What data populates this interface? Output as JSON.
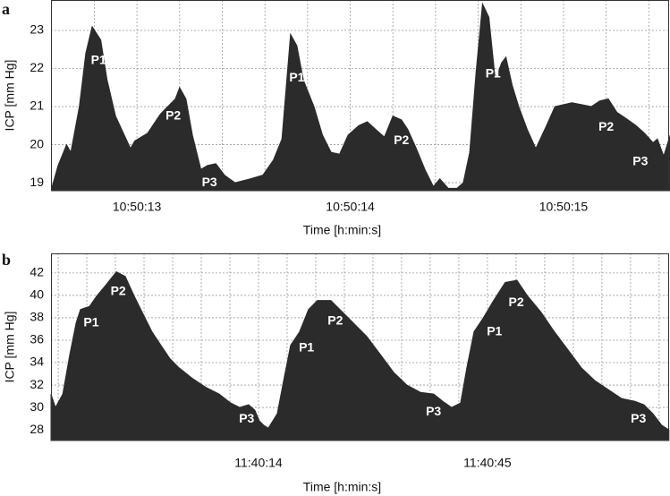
{
  "chart_data": [
    {
      "type": "area",
      "panel": "a",
      "ylabel": "ICP [mm Hg]",
      "xlabel": "Time [h:min:s]",
      "color": "#2b2b2b",
      "grid": true,
      "xlim": [
        12.597,
        15.495
      ],
      "ylim": [
        18.79,
        23.8
      ],
      "xticks": [
        {
          "value": 13,
          "label": "10:50:13"
        },
        {
          "value": 14,
          "label": "10:50:14"
        },
        {
          "value": 15,
          "label": "10:50:15"
        }
      ],
      "x_minor_ticks": [
        12.8,
        13.2,
        13.4,
        13.6,
        13.8,
        14.2,
        14.4,
        14.6,
        14.8,
        15.2,
        15.4
      ],
      "yticks": [
        19,
        20,
        21,
        22,
        23
      ],
      "x": [
        12.6,
        12.63,
        12.67,
        12.69,
        12.73,
        12.76,
        12.79,
        12.83,
        12.86,
        12.9,
        12.97,
        12.99,
        13.05,
        13.11,
        13.18,
        13.2,
        13.23,
        13.26,
        13.3,
        13.33,
        13.37,
        13.41,
        13.46,
        13.53,
        13.59,
        13.64,
        13.68,
        13.72,
        13.75,
        13.78,
        13.83,
        13.87,
        13.91,
        13.95,
        13.99,
        14.04,
        14.08,
        14.12,
        14.16,
        14.2,
        14.24,
        14.27,
        14.31,
        14.35,
        14.39,
        14.42,
        14.46,
        14.5,
        14.53,
        14.56,
        14.59,
        14.62,
        14.65,
        14.68,
        14.71,
        14.73,
        14.76,
        14.79,
        14.83,
        14.87,
        14.92,
        14.96,
        15.04,
        15.13,
        15.17,
        15.21,
        15.25,
        15.29,
        15.34,
        15.38,
        15.42,
        15.44,
        15.47,
        15.5
      ],
      "values": [
        18.85,
        19.45,
        20.0,
        19.8,
        21.0,
        22.4,
        23.1,
        22.75,
        21.7,
        20.75,
        19.9,
        20.1,
        20.3,
        20.8,
        21.2,
        21.5,
        21.2,
        20.25,
        19.35,
        19.45,
        19.5,
        19.2,
        19.0,
        19.1,
        19.2,
        19.6,
        20.15,
        22.9,
        22.6,
        21.7,
        21.0,
        20.25,
        19.8,
        19.75,
        20.25,
        20.5,
        20.6,
        20.4,
        20.2,
        20.75,
        20.65,
        20.4,
        19.9,
        19.35,
        18.9,
        19.1,
        18.85,
        18.85,
        19.0,
        19.8,
        21.9,
        23.7,
        23.35,
        21.7,
        22.15,
        22.3,
        21.55,
        21.0,
        20.4,
        19.9,
        20.5,
        21.0,
        21.1,
        21.0,
        21.15,
        21.2,
        20.85,
        20.7,
        20.5,
        20.3,
        20.05,
        20.15,
        19.7,
        20.25
      ],
      "annotations": [
        {
          "text": "P1",
          "x": 12.82,
          "y": 22.2
        },
        {
          "text": "P2",
          "x": 13.17,
          "y": 20.75
        },
        {
          "text": "P3",
          "x": 13.34,
          "y": 19.0
        },
        {
          "text": "P1",
          "x": 13.75,
          "y": 21.75
        },
        {
          "text": "P2",
          "x": 14.24,
          "y": 20.1
        },
        {
          "text": "P3",
          "x": 14.46,
          "y": 19.35
        },
        {
          "text": "P1",
          "x": 14.67,
          "y": 21.85
        },
        {
          "text": "P2",
          "x": 15.2,
          "y": 20.45
        },
        {
          "text": "P3",
          "x": 15.36,
          "y": 19.55
        }
      ]
    },
    {
      "type": "area",
      "panel": "b",
      "ylabel": "ICP [mm Hg]",
      "xlabel": "Time [h:min:s]",
      "color": "#2b2b2b",
      "grid": true,
      "xlim": [
        -14.1,
        69.6
      ],
      "ylim": [
        27.05,
        43.75
      ],
      "xticks": [
        {
          "value": 14,
          "label": "11:40:14"
        },
        {
          "value": 45,
          "label": "11:40:45"
        }
      ],
      "x_minor_ticks": [
        -13.125,
        -9.25,
        -5.375,
        -1.5,
        2.375,
        6.25,
        10.125,
        17.875,
        21.75,
        25.625,
        29.5,
        33.375,
        37.25,
        41.125,
        48.875,
        52.75,
        56.625,
        60.5,
        64.375,
        68.25
      ],
      "yticks": [
        28,
        30,
        32,
        34,
        36,
        38,
        40,
        42
      ],
      "x": [
        -14.1,
        -13.5,
        -12.5,
        -11.55,
        -10.7,
        -10.1,
        -8.9,
        -7.9,
        -6.7,
        -5.25,
        -4.05,
        -2.84,
        -1.63,
        -0.42,
        0.79,
        2.01,
        3.22,
        5.03,
        6.85,
        8.66,
        10.24,
        11.45,
        12.66,
        13.51,
        14.11,
        14.72,
        15.33,
        16.54,
        17.5,
        18.35,
        19.56,
        20.77,
        21.98,
        23.8,
        25.01,
        26.83,
        28.64,
        30.46,
        32.28,
        34.09,
        35.91,
        37.72,
        38.94,
        40.15,
        41.36,
        42.21,
        43.18,
        44.39,
        45.84,
        47.41,
        48.99,
        50.44,
        52.26,
        54.07,
        55.89,
        57.71,
        59.52,
        61.34,
        63.16,
        64.97,
        66.18,
        67.4,
        68.61,
        69.57
      ],
      "values": [
        31.2,
        30.0,
        31.2,
        34.75,
        37.55,
        38.75,
        39.0,
        39.95,
        40.9,
        42.1,
        41.7,
        39.95,
        38.35,
        36.75,
        35.55,
        34.35,
        33.55,
        32.6,
        31.8,
        31.2,
        30.4,
        30.0,
        30.25,
        29.75,
        28.8,
        28.4,
        28.15,
        29.45,
        32.75,
        35.55,
        36.75,
        38.75,
        39.55,
        39.55,
        38.75,
        37.55,
        36.35,
        34.75,
        33.15,
        32.0,
        31.35,
        31.2,
        30.55,
        30.0,
        30.4,
        33.55,
        36.75,
        37.95,
        39.55,
        41.15,
        41.35,
        39.95,
        38.5,
        36.75,
        35.15,
        33.55,
        32.4,
        31.6,
        30.8,
        30.55,
        30.25,
        29.45,
        28.4,
        28.0
      ],
      "annotations": [
        {
          "text": "P1",
          "x": -8.65,
          "y": 37.55
        },
        {
          "text": "P2",
          "x": -5.0,
          "y": 40.35
        },
        {
          "text": "P3",
          "x": 12.4,
          "y": 28.95
        },
        {
          "text": "P1",
          "x": 20.5,
          "y": 35.3
        },
        {
          "text": "P2",
          "x": 24.4,
          "y": 37.7
        },
        {
          "text": "P3",
          "x": 37.7,
          "y": 29.6
        },
        {
          "text": "P1",
          "x": 45.95,
          "y": 36.75
        },
        {
          "text": "P2",
          "x": 48.9,
          "y": 39.35
        },
        {
          "text": "P3",
          "x": 65.45,
          "y": 28.95
        }
      ]
    }
  ]
}
